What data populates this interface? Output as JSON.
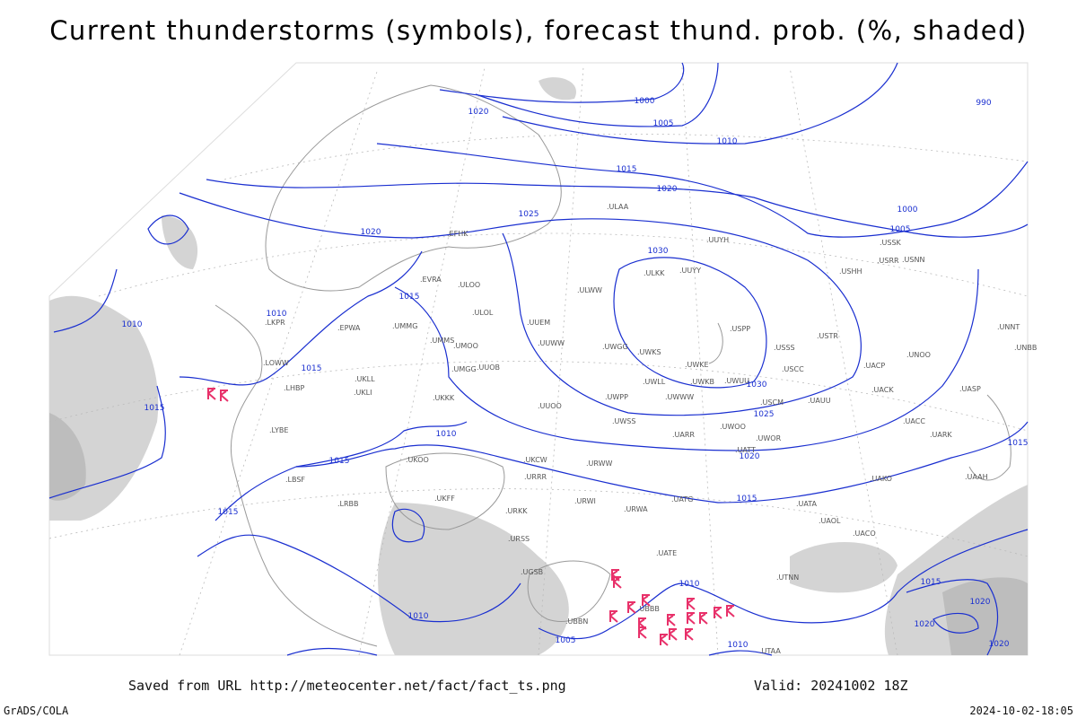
{
  "header": {
    "title": "Current thunderstorms (symbols), forecast thund. prob. (%, shaded)"
  },
  "map": {
    "isobar_labels": [
      1020,
      1000,
      1005,
      1010,
      1015,
      1020,
      1025,
      1030,
      1020,
      1015,
      1010,
      1010,
      1015,
      1030,
      1025,
      1015,
      1010,
      1015,
      1020,
      1015,
      1015,
      1010,
      1010,
      1005,
      1010,
      1000,
      1005,
      990,
      1015,
      1020,
      1020,
      1020,
      1015
    ],
    "station_labels": [
      ".ULAA",
      ".UUYH",
      ".ULKK",
      ".UUYY",
      ".ULWW",
      ".ULOL",
      ".UUEM",
      ".UUWW",
      ".UWGG",
      ".UWKS",
      ".UWKE",
      ".USPP",
      ".USSS",
      ".USTR",
      ".USCC",
      ".UMMG",
      ".UMMS",
      ".UMOO",
      ".UUOB",
      ".UMGG",
      ".UKKK",
      ".UKLL",
      ".UKLI",
      ".UUOO",
      ".UWPP",
      ".UWWW",
      ".UWUU",
      ".UWKB",
      ".UWLL",
      ".USCM",
      ".UAUU",
      ".UACK",
      ".UASP",
      ".UACP",
      ".UNOO",
      ".UACC",
      ".UARK",
      ".UATT",
      ".UWOR",
      ".UWOO",
      ".UARR",
      ".UWSS",
      ".URWW",
      ".UKCW",
      ".URRR",
      ".URWI",
      ".URWA",
      ".UATG",
      ".UATA",
      ".UAOL",
      ".UACO",
      ".UAKO",
      ".UAAH",
      ".UTNN",
      ".UATE",
      ".EFHK",
      ".EVRA",
      ".ULOO",
      ".EPWA",
      ".LKPR",
      ".LOWW",
      ".LHBP",
      ".LYBE",
      ".LBSF",
      ".LRBB",
      ".UKOO",
      ".UKFF",
      ".URKK",
      ".URSS",
      ".UGSB",
      ".UBBB",
      ".UBBN",
      ".UTAA",
      ".USSK",
      ".USNN",
      ".USRR",
      ".USHH",
      ".UNNT",
      ".UNBB"
    ]
  },
  "footer": {
    "saved_from": "Saved from URL http://meteocenter.net/fact/fact_ts.png",
    "valid": "Valid: 20241002 18Z",
    "software": "GrADS/COLA",
    "timestamp": "2024-10-02-18:05"
  }
}
